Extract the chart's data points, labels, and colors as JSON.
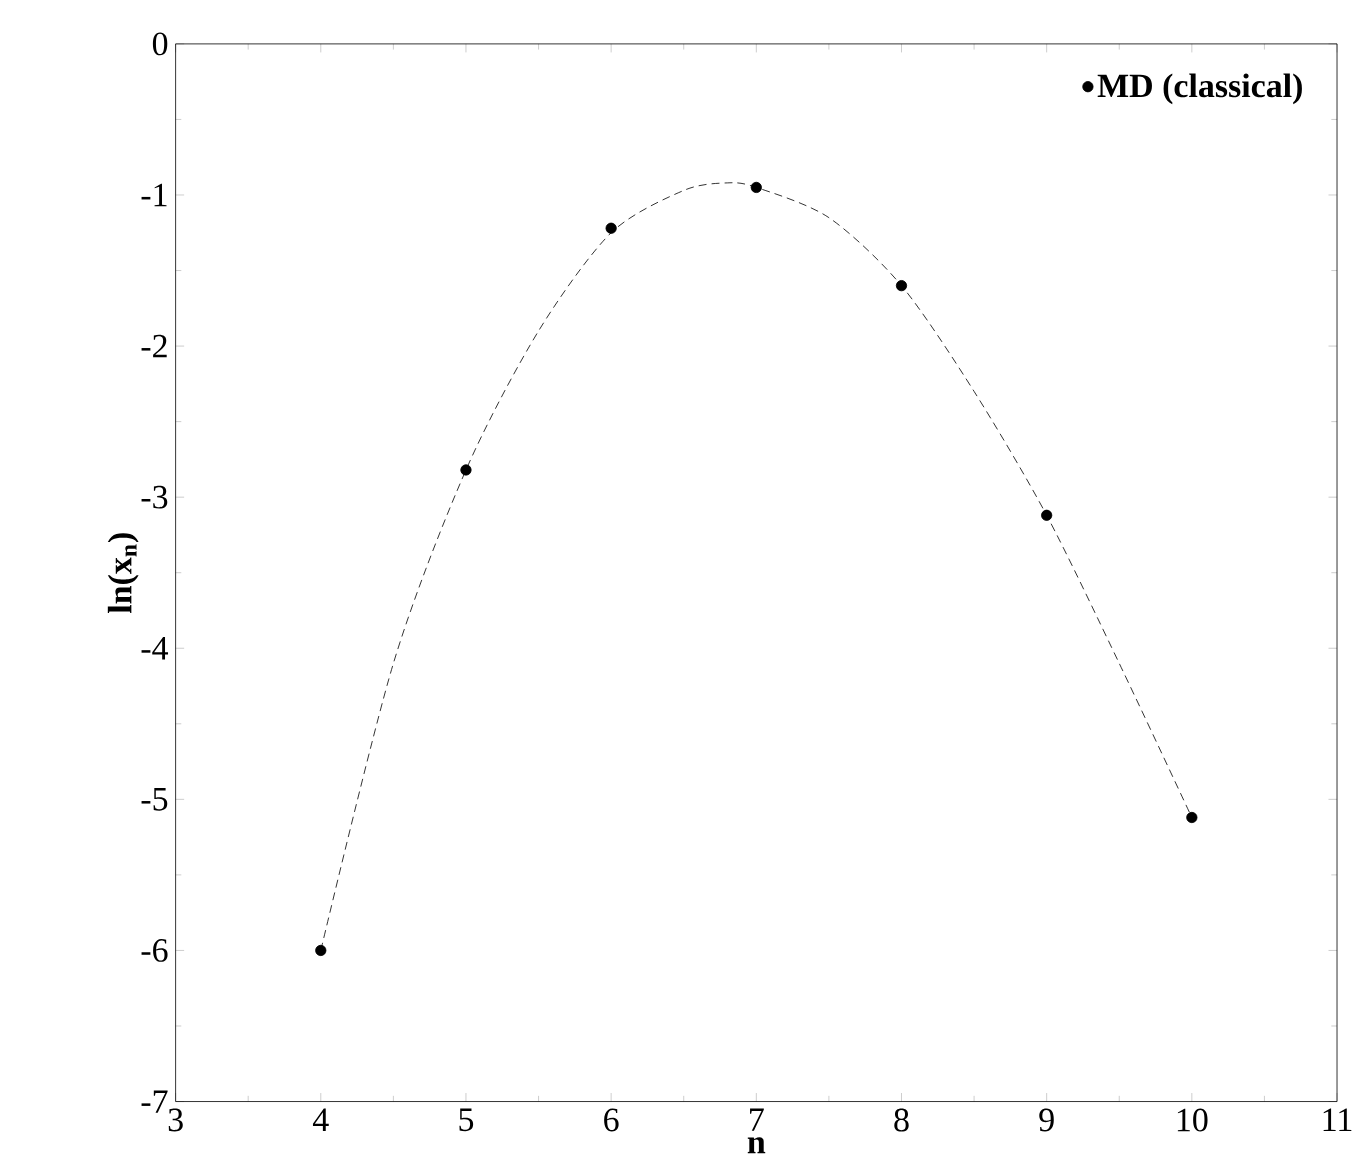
{
  "chart_data": {
    "type": "scatter",
    "xlabel": "n",
    "ylabel": "ln(x$_{n}$)",
    "xlim": [
      3,
      11
    ],
    "ylim": [
      -7,
      0
    ],
    "xticks": [
      3,
      4,
      5,
      6,
      7,
      8,
      9,
      10,
      11
    ],
    "yticks": [
      -7,
      -6,
      -5,
      -4,
      -3,
      -2,
      -1,
      0
    ],
    "grid": false,
    "legend": "top right",
    "series": [
      {
        "name": "MD (classical)",
        "color": "#000000",
        "marker": "circle",
        "x": [
          4,
          5,
          6,
          7,
          8,
          9,
          10
        ],
        "values": [
          -6.0,
          -2.82,
          -1.22,
          -0.95,
          -1.6,
          -3.12,
          -5.12
        ]
      },
      {
        "type": "line",
        "color": "#000000",
        "line_style": "dashed",
        "marker": "none",
        "x": [
          4,
          4.5,
          5,
          5.5,
          6,
          6.5,
          6.8,
          7,
          7.5,
          8,
          8.5,
          9,
          9.5,
          10
        ],
        "values": [
          -6.0,
          -4.1,
          -2.82,
          -1.9,
          -1.25,
          -0.97,
          -0.92,
          -0.95,
          -1.15,
          -1.6,
          -2.3,
          -3.12,
          -4.1,
          -5.12
        ]
      }
    ]
  }
}
